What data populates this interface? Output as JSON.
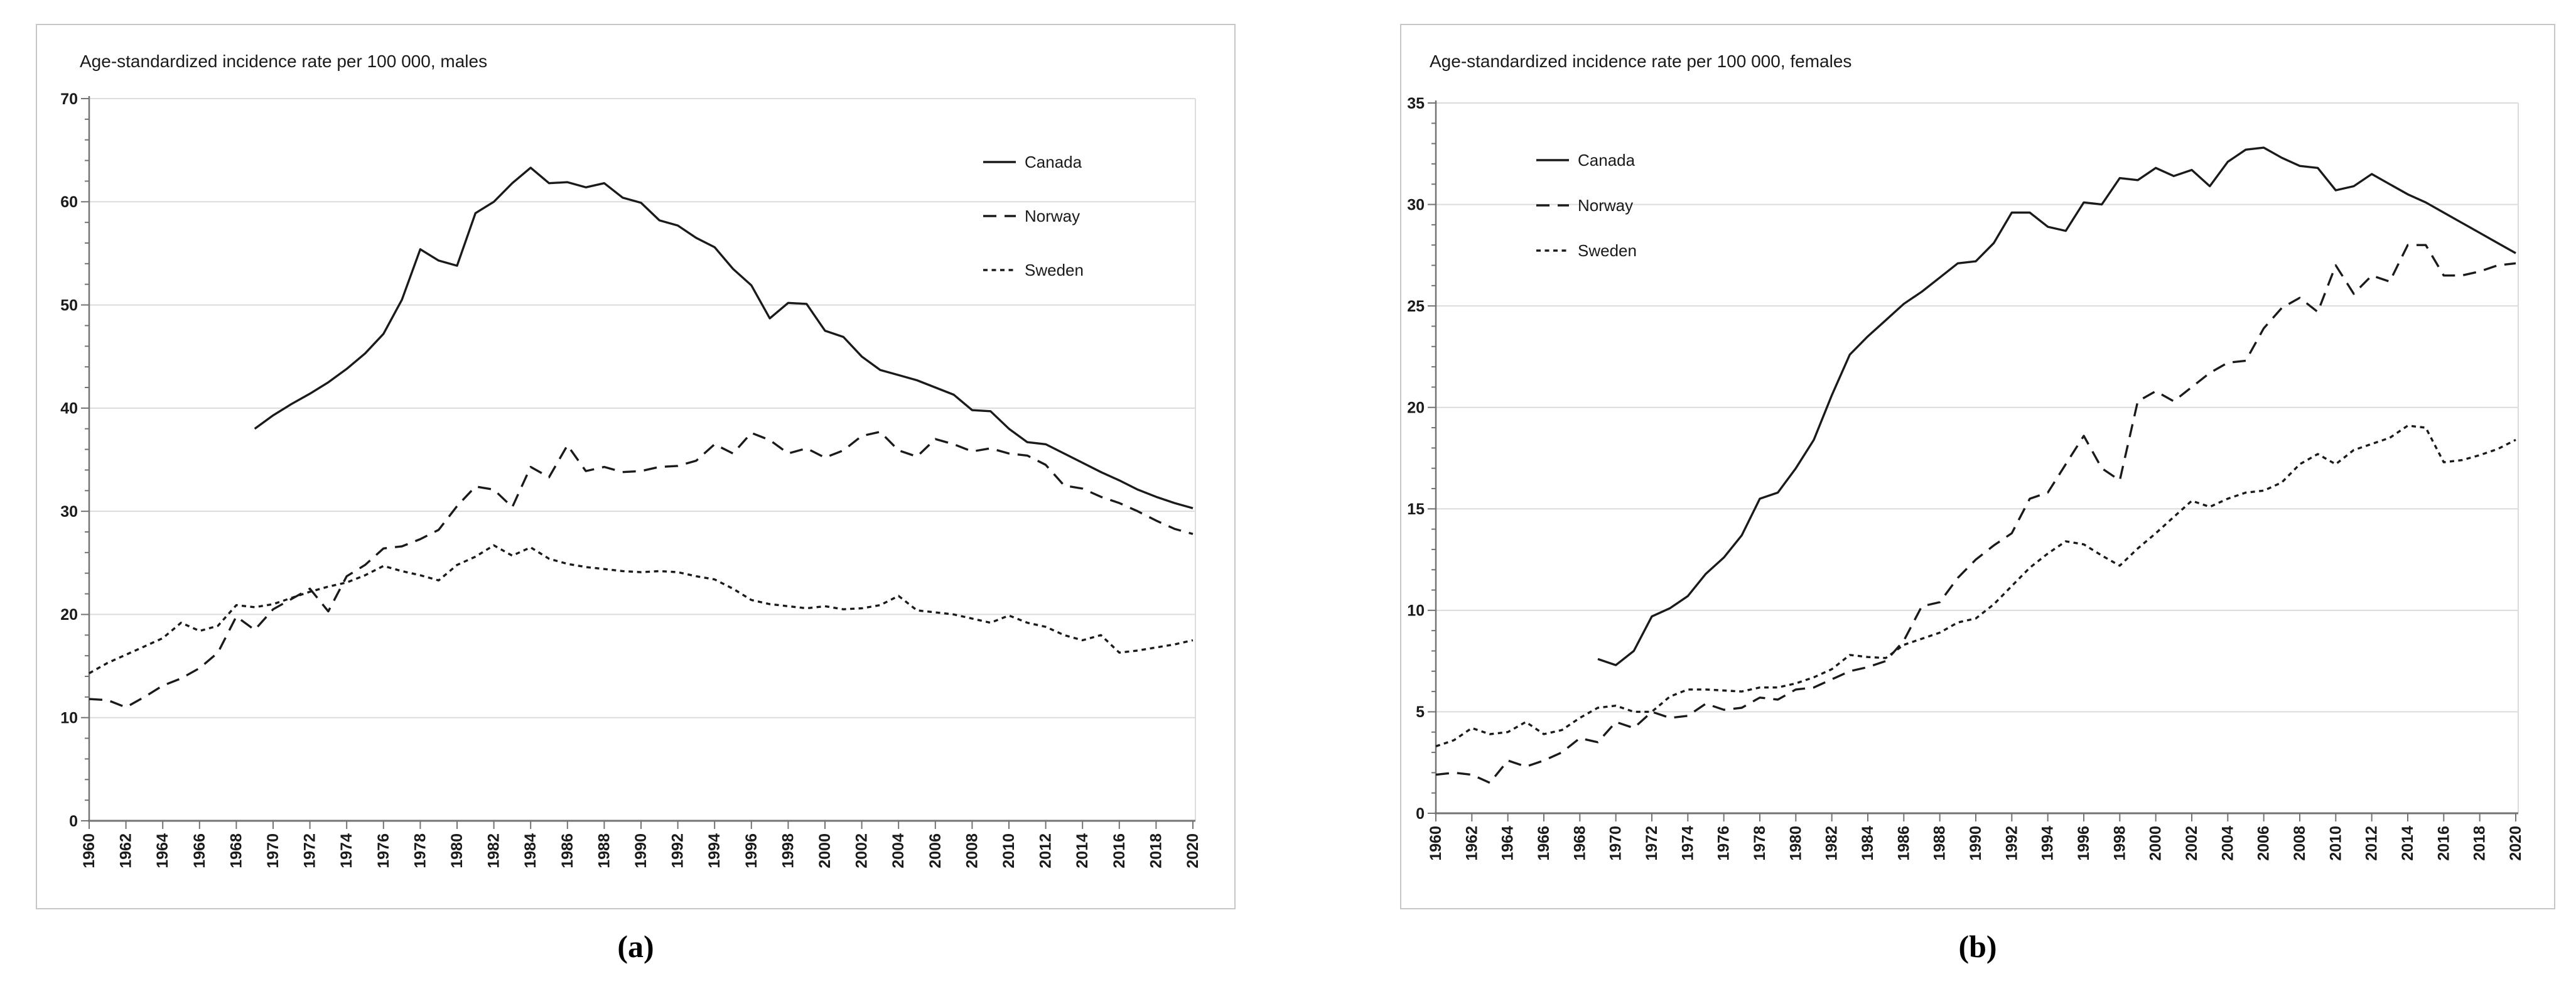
{
  "figure": {
    "panels": [
      {
        "id": "a",
        "caption": "(a)",
        "title": "Age-standardized incidence rate per 100 000, males",
        "legend": [
          "Canada",
          "Norway",
          "Sweden"
        ]
      },
      {
        "id": "b",
        "caption": "(b)",
        "title": "Age-standardized incidence rate per 100 000, females",
        "legend": [
          "Canada",
          "Norway",
          "Sweden"
        ]
      }
    ]
  },
  "chart_data": [
    {
      "type": "line",
      "title": "Age-standardized incidence rate per 100 000, males",
      "caption": "(a)",
      "xlabel": "",
      "ylabel": "",
      "x_start": 1960,
      "x_end": 2020,
      "x_tick_step": 2,
      "ylim": [
        0,
        70
      ],
      "y_tick_step": 10,
      "y_minor_step": 2,
      "grid": true,
      "legend_position": "top-right",
      "series": [
        {
          "name": "Canada",
          "line_style": "solid",
          "start_year": 1969,
          "values": [
            38,
            39.3,
            40.4,
            41.4,
            42.5,
            43.8,
            45.3,
            47.2,
            50.5,
            55.4,
            54.3,
            53.8,
            58.9,
            60,
            61.8,
            63.3,
            61.8,
            61.9,
            61.4,
            61.8,
            60.4,
            59.9,
            58.2,
            57.7,
            56.5,
            55.6,
            53.5,
            51.9,
            48.7,
            50.2,
            50.1,
            47.5,
            46.9,
            45,
            43.7,
            43.2,
            42.7,
            42,
            41.3,
            39.8,
            39.7,
            38,
            36.7,
            36.5,
            35.6,
            34.7,
            33.8,
            33,
            32.1,
            31.4,
            30.8,
            30.3
          ]
        },
        {
          "name": "Norway",
          "line_style": "long-dash",
          "start_year": 1960,
          "values": [
            11.8,
            11.7,
            11,
            12,
            13.1,
            13.8,
            14.8,
            16.3,
            19.8,
            18.5,
            20.5,
            21.5,
            22.5,
            20.3,
            23.7,
            24.8,
            26.4,
            26.6,
            27.3,
            28.2,
            30.5,
            32.4,
            32.1,
            30.4,
            34.3,
            33.3,
            36.4,
            33.9,
            34.3,
            33.8,
            33.9,
            34.3,
            34.4,
            34.9,
            36.5,
            35.6,
            37.6,
            36.9,
            35.6,
            36.1,
            35.2,
            35.9,
            37.3,
            37.7,
            35.9,
            35.3,
            37,
            36.5,
            35.8,
            36.1,
            35.6,
            35.4,
            34.5,
            32.5,
            32.2,
            31.4,
            30.8,
            30,
            29.1,
            28.3,
            27.8
          ]
        },
        {
          "name": "Sweden",
          "line_style": "short-dash",
          "start_year": 1960,
          "values": [
            14.3,
            15.3,
            16.1,
            16.9,
            17.7,
            19.2,
            18.4,
            18.9,
            20.9,
            20.7,
            21,
            21.6,
            22.2,
            22.7,
            23.1,
            23.8,
            24.7,
            24.2,
            23.8,
            23.3,
            24.8,
            25.6,
            26.7,
            25.7,
            26.5,
            25.4,
            24.9,
            24.6,
            24.4,
            24.2,
            24.1,
            24.2,
            24.1,
            23.7,
            23.4,
            22.5,
            21.4,
            21,
            20.8,
            20.6,
            20.8,
            20.5,
            20.6,
            20.9,
            21.8,
            20.4,
            20.2,
            20,
            19.6,
            19.2,
            19.9,
            19.2,
            18.8,
            18,
            17.5,
            18,
            16.3,
            16.5,
            16.8,
            17.1,
            17.5
          ]
        }
      ]
    },
    {
      "type": "line",
      "title": "Age-standardized incidence rate per 100 000, females",
      "caption": "(b)",
      "xlabel": "",
      "ylabel": "",
      "x_start": 1960,
      "x_end": 2020,
      "x_tick_step": 2,
      "ylim": [
        0,
        35
      ],
      "y_tick_step": 5,
      "y_minor_step": 1,
      "grid": true,
      "legend_position": "top-left",
      "series": [
        {
          "name": "Canada",
          "line_style": "solid",
          "start_year": 1969,
          "values": [
            7.6,
            7.3,
            8,
            9.7,
            10.1,
            10.7,
            11.8,
            12.6,
            13.7,
            15.5,
            15.8,
            17,
            18.4,
            20.6,
            22.6,
            23.5,
            24.3,
            25.1,
            25.7,
            26.4,
            27.1,
            27.2,
            28.1,
            29.6,
            29.6,
            28.9,
            28.7,
            30.1,
            30,
            31.3,
            31.2,
            31.8,
            31.4,
            31.7,
            30.9,
            32.1,
            32.7,
            32.8,
            32.3,
            31.9,
            31.8,
            30.7,
            30.9,
            31.5,
            31,
            30.5,
            30.1,
            29.6,
            29.1,
            28.6,
            28.1,
            27.6
          ]
        },
        {
          "name": "Norway",
          "line_style": "long-dash",
          "start_year": 1960,
          "values": [
            1.9,
            2,
            1.9,
            1.5,
            2.6,
            2.3,
            2.6,
            3,
            3.7,
            3.5,
            4.5,
            4.2,
            5,
            4.7,
            4.8,
            5.4,
            5.1,
            5.2,
            5.7,
            5.6,
            6.1,
            6.2,
            6.6,
            7,
            7.2,
            7.5,
            8.5,
            10.2,
            10.4,
            11.6,
            12.5,
            13.2,
            13.8,
            15.5,
            15.8,
            17.2,
            18.6,
            17,
            16.4,
            20.3,
            20.8,
            20.3,
            21,
            21.7,
            22.2,
            22.3,
            23.9,
            24.9,
            25.4,
            24.7,
            27,
            25.6,
            26.5,
            26.2,
            28,
            28,
            26.5,
            26.5,
            26.7,
            27,
            27.1
          ]
        },
        {
          "name": "Sweden",
          "line_style": "short-dash",
          "start_year": 1960,
          "values": [
            3.3,
            3.6,
            4.2,
            3.9,
            4,
            4.5,
            3.9,
            4.1,
            4.7,
            5.2,
            5.3,
            5,
            5,
            5.75,
            6.1,
            6.1,
            6.05,
            6,
            6.2,
            6.2,
            6.4,
            6.7,
            7.1,
            7.8,
            7.7,
            7.65,
            8.3,
            8.6,
            8.9,
            9.4,
            9.6,
            10.3,
            11.2,
            12.1,
            12.8,
            13.4,
            13.25,
            12.7,
            12.2,
            13.05,
            13.8,
            14.6,
            15.4,
            15.1,
            15.5,
            15.8,
            15.9,
            16.3,
            17.2,
            17.7,
            17.2,
            17.9,
            18.2,
            18.5,
            19.1,
            19,
            17.3,
            17.4,
            17.65,
            17.95,
            18.4
          ]
        }
      ]
    }
  ],
  "style": {
    "line_color": "#1a1a1a",
    "grid_color": "#dcdcdc",
    "axis_color": "#737373",
    "border_color": "#c6c6c6",
    "background": "#ffffff"
  }
}
